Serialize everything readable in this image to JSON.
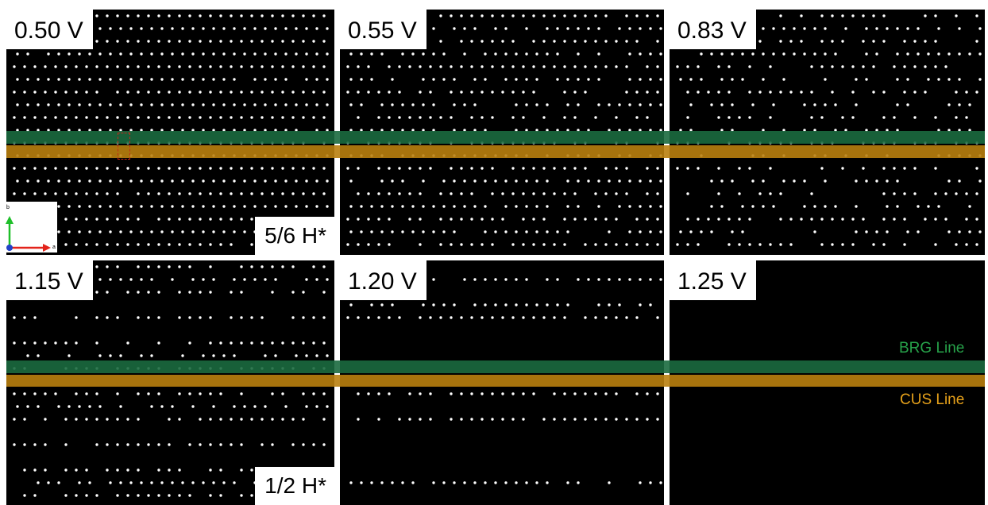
{
  "panels": [
    {
      "id": "p050",
      "voltage": "0.50 V",
      "coverage": "5/6 H*",
      "has_selection_box": true,
      "has_axes": true
    },
    {
      "id": "p055",
      "voltage": "0.55 V",
      "coverage": "",
      "has_selection_box": false,
      "has_axes": false
    },
    {
      "id": "p083",
      "voltage": "0.83 V",
      "coverage": "",
      "has_selection_box": false,
      "has_axes": false
    },
    {
      "id": "p115",
      "voltage": "1.15 V",
      "coverage": "1/2 H*",
      "has_selection_box": false,
      "has_axes": false
    },
    {
      "id": "p120",
      "voltage": "1.20 V",
      "coverage": "",
      "has_selection_box": false,
      "has_axes": false
    },
    {
      "id": "p125",
      "voltage": "1.25 V",
      "coverage": "",
      "has_selection_box": false,
      "has_axes": false
    }
  ],
  "bands": {
    "brg": {
      "label": "BRG Line",
      "color": "#1b6a3f",
      "text_color": "#27a24a"
    },
    "cus": {
      "label": "CUS Line",
      "color": "#b9800e",
      "text_color": "#e6a11a"
    }
  },
  "axes": {
    "b_label": "b",
    "a_label": "a",
    "b_color": "#1fbf2a",
    "a_color": "#e3241b",
    "c_color": "#2243c8"
  },
  "atom_color": "#ffffff"
}
